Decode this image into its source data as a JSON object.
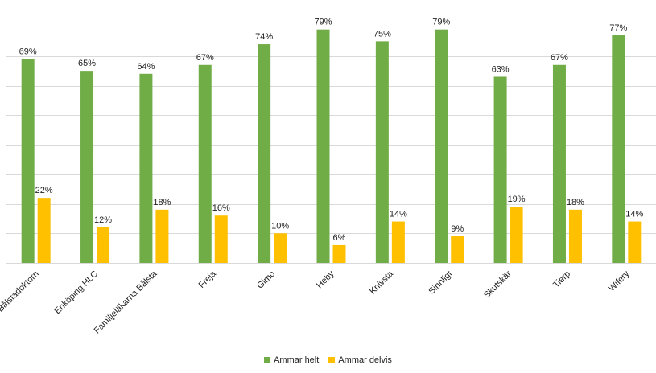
{
  "chart_data": {
    "type": "bar",
    "categories": [
      "Bålstadoktorn",
      "Enköping HLC",
      "Familjeläkarna Bålsta",
      "Freja",
      "Gimo",
      "Heby",
      "Knivsta",
      "Sinnligt",
      "Skutskär",
      "Tierp",
      "Wifery"
    ],
    "series": [
      {
        "name": "Ammar helt",
        "color": "#70ad47",
        "values": [
          69,
          65,
          64,
          67,
          74,
          79,
          75,
          79,
          63,
          67,
          77
        ],
        "labels": [
          "69%",
          "65%",
          "64%",
          "67%",
          "74%",
          "79%",
          "75%",
          "79%",
          "63%",
          "67%",
          "77%"
        ]
      },
      {
        "name": "Ammar delvis",
        "color": "#ffc000",
        "values": [
          22,
          12,
          18,
          16,
          10,
          6,
          14,
          9,
          19,
          18,
          14
        ],
        "labels": [
          "22%",
          "12%",
          "18%",
          "16%",
          "10%",
          "6%",
          "14%",
          "9%",
          "19%",
          "18%",
          "14%"
        ]
      }
    ],
    "ylim": [
      0,
      80
    ],
    "ygrid_step": 10,
    "grid": true,
    "legend_position": "bottom"
  }
}
